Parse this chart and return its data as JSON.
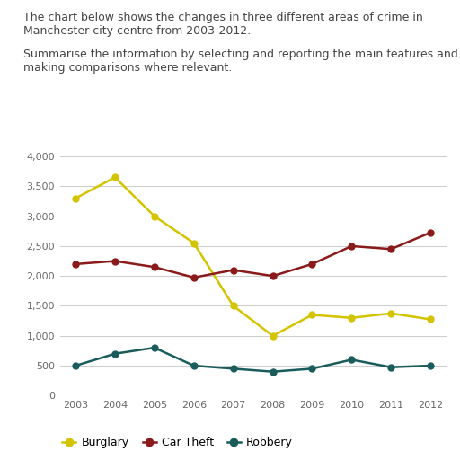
{
  "title_line1": "The chart below shows the changes in three different areas of crime in",
  "title_line2": "Manchester city centre from 2003-2012.",
  "subtitle_line1": "Summarise the information by selecting and reporting the main features and",
  "subtitle_line2": "making comparisons where relevant.",
  "years": [
    2003,
    2004,
    2005,
    2006,
    2007,
    2008,
    2009,
    2010,
    2011,
    2012
  ],
  "burglary": [
    3300,
    3650,
    3000,
    2550,
    1500,
    1000,
    1350,
    1300,
    1375,
    1275
  ],
  "car_theft": [
    2200,
    2250,
    2150,
    1975,
    2100,
    2000,
    2200,
    2500,
    2450,
    2725
  ],
  "robbery": [
    500,
    700,
    800,
    500,
    450,
    400,
    450,
    600,
    475,
    500
  ],
  "burglary_color": "#d4c400",
  "car_theft_color": "#8b1a1a",
  "robbery_color": "#1a5c5c",
  "background_color": "#ffffff",
  "grid_color": "#cccccc",
  "text_color": "#444444",
  "ylim": [
    0,
    4000
  ],
  "yticks": [
    0,
    500,
    1000,
    1500,
    2000,
    2500,
    3000,
    3500,
    4000
  ],
  "ytick_labels": [
    "0",
    "500",
    "1,000",
    "1,500",
    "2,000",
    "2,500",
    "3,000",
    "3,500",
    "4,000"
  ],
  "legend_burglary": "Burglary",
  "legend_car_theft": "Car Theft",
  "legend_robbery": "Robbery",
  "marker_size": 5,
  "line_width": 1.8,
  "text_fontsize": 9.0,
  "tick_fontsize": 8.0
}
